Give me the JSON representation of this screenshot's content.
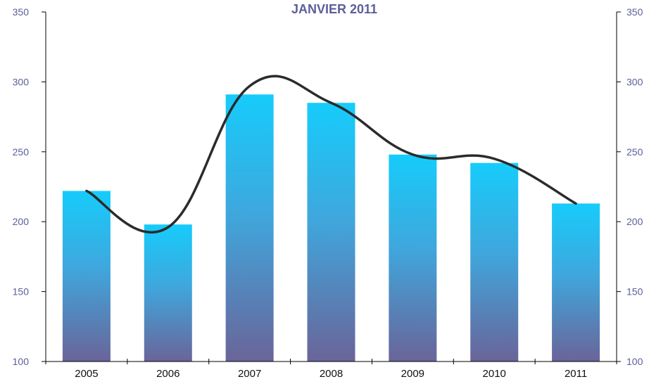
{
  "chart_data": {
    "type": "bar",
    "title": "JANVIER 2011",
    "categories": [
      "2005",
      "2006",
      "2007",
      "2008",
      "2009",
      "2010",
      "2011"
    ],
    "series": [
      {
        "type": "bar",
        "values": [
          222,
          198,
          291,
          285,
          248,
          242,
          213
        ]
      },
      {
        "type": "line",
        "smooth": true,
        "values": [
          222,
          196,
          297,
          285,
          248,
          245,
          213
        ]
      }
    ],
    "ylim": [
      100,
      350
    ],
    "y_ticks": [
      100,
      150,
      200,
      250,
      300,
      350
    ],
    "y2lim": [
      100,
      350
    ],
    "y2_ticks": [
      100,
      150,
      200,
      250,
      300,
      350
    ],
    "grid": false,
    "colors": {
      "bar_top": "#16ccfb",
      "bar_mid": "#3fa7dd",
      "bar_bottom": "#6a6499",
      "line": "#2b2b2b",
      "tick_text": "#5b5f9a",
      "title": "#5b5f9a"
    }
  }
}
